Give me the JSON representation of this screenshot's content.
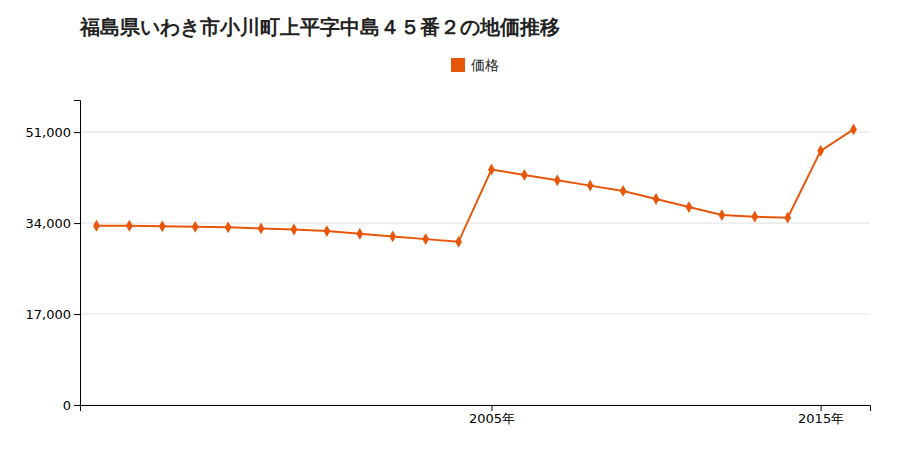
{
  "chart_data": {
    "type": "line",
    "title": "福島県いわき市小川町上平字中島４５番２の地価推移",
    "x": [
      1993,
      1994,
      1995,
      1996,
      1997,
      1998,
      1999,
      2000,
      2001,
      2002,
      2003,
      2004,
      2005,
      2006,
      2007,
      2008,
      2009,
      2010,
      2011,
      2012,
      2013,
      2014,
      2015,
      2016
    ],
    "series": [
      {
        "name": "価格",
        "color": "#e8560a",
        "marker": "diamond",
        "values": [
          33500,
          33500,
          33400,
          33300,
          33200,
          33000,
          32800,
          32500,
          32000,
          31500,
          31000,
          30500,
          44000,
          43000,
          42000,
          41000,
          40000,
          38500,
          37000,
          35500,
          35200,
          35000,
          47500,
          51500
        ]
      }
    ],
    "xlim": [
      1992.5,
      2016.5
    ],
    "xticks": [
      {
        "value": 2005,
        "label": "2005年"
      },
      {
        "value": 2015,
        "label": "2015年"
      }
    ],
    "ylim": [
      0,
      57000
    ],
    "yticks": [
      0,
      {
        "value": 17000,
        "label": "17,000"
      },
      {
        "value": 34000,
        "label": "34,000"
      },
      {
        "value": 51000,
        "label": "51,000"
      }
    ],
    "grid": true,
    "legend": "top"
  }
}
